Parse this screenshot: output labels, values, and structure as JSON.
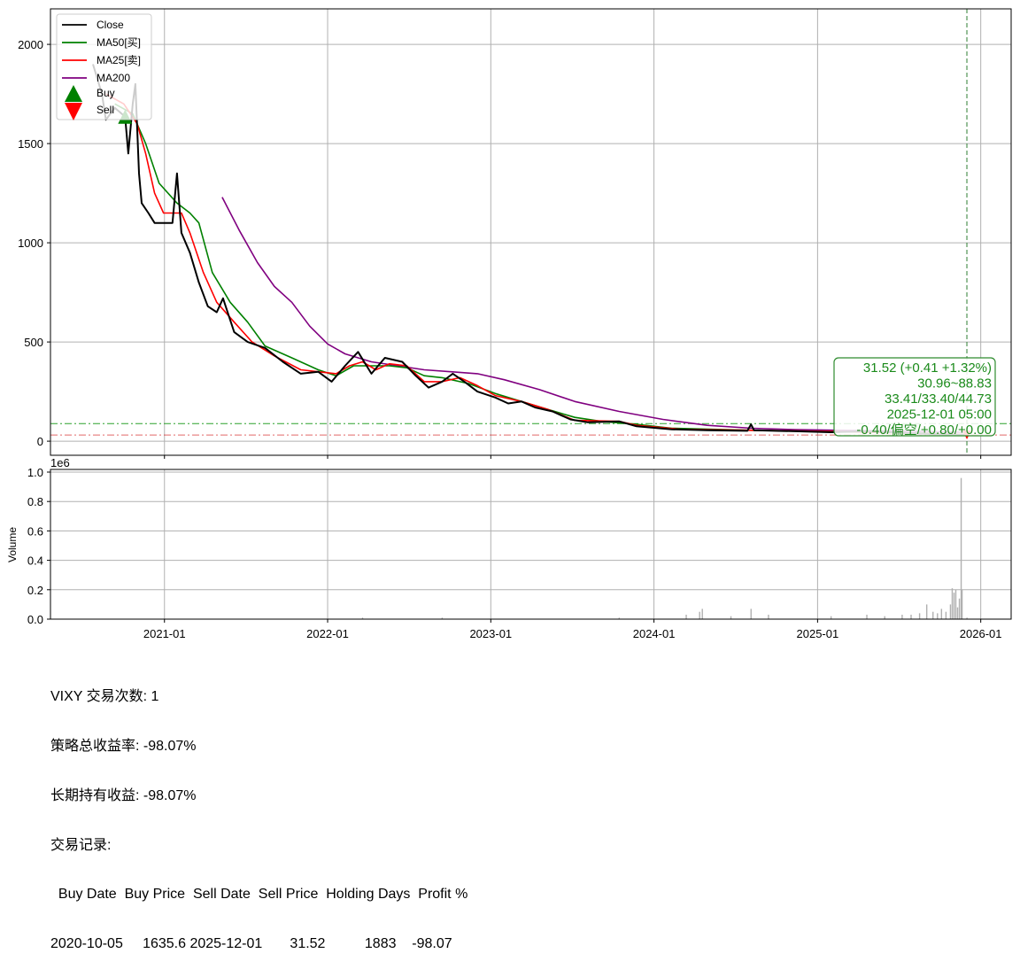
{
  "chart_data": [
    {
      "type": "line",
      "ticker": "VIXY",
      "xlim": [
        "2020-04-21",
        "2026-03-10"
      ],
      "ylim": [
        -71,
        2179
      ],
      "grid": true,
      "legend_placement": "top-left",
      "x_ticks": [
        "2021-01",
        "2022-01",
        "2023-01",
        "2024-01",
        "2025-01",
        "2026-01"
      ],
      "y_ticks": [
        0,
        500,
        1000,
        1500,
        2000
      ],
      "legend": [
        "Close",
        "MA50[买]",
        "MA25[卖]",
        "MA200",
        "Buy",
        "Sell"
      ],
      "colors": {
        "close": "#000000",
        "ma50": "#008000",
        "ma25": "#ff0000",
        "ma200": "#800080",
        "buy": "#008000",
        "sell": "#ff0000",
        "high_line": "#2ca02c",
        "low_line": "#d62728"
      },
      "series": [
        {
          "name": "Close",
          "key": "close",
          "points": [
            [
              "2020-07-25",
              1900
            ],
            [
              "2020-08-14",
              1750
            ],
            [
              "2020-08-23",
              1620
            ],
            [
              "2020-09-12",
              1680
            ],
            [
              "2020-10-05",
              1635.6
            ],
            [
              "2020-10-12",
              1450
            ],
            [
              "2020-10-22",
              1700
            ],
            [
              "2020-10-28",
              1800
            ],
            [
              "2020-11-05",
              1350
            ],
            [
              "2020-11-11",
              1200
            ],
            [
              "2020-11-26",
              1150
            ],
            [
              "2020-12-10",
              1100
            ],
            [
              "2020-12-30",
              1100
            ],
            [
              "2021-01-19",
              1100
            ],
            [
              "2021-01-29",
              1350
            ],
            [
              "2021-02-08",
              1050
            ],
            [
              "2021-02-27",
              950
            ],
            [
              "2021-03-19",
              800
            ],
            [
              "2021-04-08",
              680
            ],
            [
              "2021-04-28",
              650
            ],
            [
              "2021-05-12",
              720
            ],
            [
              "2021-06-06",
              550
            ],
            [
              "2021-07-06",
              500
            ],
            [
              "2021-08-14",
              470
            ],
            [
              "2021-09-23",
              400
            ],
            [
              "2021-11-02",
              340
            ],
            [
              "2021-12-11",
              350
            ],
            [
              "2022-01-10",
              300
            ],
            [
              "2022-02-09",
              380
            ],
            [
              "2022-03-10",
              450
            ],
            [
              "2022-04-09",
              340
            ],
            [
              "2022-05-09",
              420
            ],
            [
              "2022-06-17",
              400
            ],
            [
              "2022-07-17",
              330
            ],
            [
              "2022-08-15",
              270
            ],
            [
              "2022-09-14",
              300
            ],
            [
              "2022-10-08",
              340
            ],
            [
              "2022-11-03",
              300
            ],
            [
              "2022-12-02",
              250
            ],
            [
              "2023-01-11",
              220
            ],
            [
              "2023-02-09",
              190
            ],
            [
              "2023-03-11",
              200
            ],
            [
              "2023-04-10",
              170
            ],
            [
              "2023-05-19",
              150
            ],
            [
              "2023-06-28",
              110
            ],
            [
              "2023-08-06",
              95
            ],
            [
              "2023-10-15",
              100
            ],
            [
              "2023-11-23",
              75
            ],
            [
              "2024-02-10",
              60
            ],
            [
              "2024-04-29",
              55
            ],
            [
              "2024-07-28",
              52
            ],
            [
              "2024-08-05",
              85
            ],
            [
              "2024-08-12",
              55
            ],
            [
              "2024-11-13",
              50
            ],
            [
              "2025-01-31",
              45
            ],
            [
              "2025-04-21",
              50
            ],
            [
              "2025-07-09",
              42
            ],
            [
              "2025-09-26",
              35
            ],
            [
              "2025-12-01",
              31.52
            ]
          ]
        },
        {
          "name": "MA50[买]",
          "key": "ma50",
          "points": [
            [
              "2020-09-12",
              1700
            ],
            [
              "2020-10-22",
              1650
            ],
            [
              "2020-11-20",
              1500
            ],
            [
              "2020-12-20",
              1300
            ],
            [
              "2021-01-29",
              1200
            ],
            [
              "2021-02-27",
              1150
            ],
            [
              "2021-03-19",
              1100
            ],
            [
              "2021-04-18",
              850
            ],
            [
              "2021-05-28",
              700
            ],
            [
              "2021-07-06",
              600
            ],
            [
              "2021-08-14",
              480
            ],
            [
              "2021-10-13",
              420
            ],
            [
              "2021-12-11",
              360
            ],
            [
              "2022-01-20",
              330
            ],
            [
              "2022-02-28",
              380
            ],
            [
              "2022-04-09",
              380
            ],
            [
              "2022-05-19",
              380
            ],
            [
              "2022-06-27",
              370
            ],
            [
              "2022-08-05",
              330
            ],
            [
              "2022-09-14",
              320
            ],
            [
              "2022-11-13",
              290
            ],
            [
              "2023-01-11",
              240
            ],
            [
              "2023-03-11",
              200
            ],
            [
              "2023-05-09",
              160
            ],
            [
              "2023-07-08",
              120
            ],
            [
              "2023-09-05",
              100
            ],
            [
              "2023-11-23",
              85
            ],
            [
              "2024-02-10",
              65
            ],
            [
              "2024-08-07",
              55
            ],
            [
              "2025-02-20",
              48
            ],
            [
              "2025-09-06",
              40
            ],
            [
              "2025-12-01",
              33.41
            ]
          ]
        },
        {
          "name": "MA25[卖]",
          "key": "ma25",
          "points": [
            [
              "2020-08-23",
              1750
            ],
            [
              "2020-10-02",
              1700
            ],
            [
              "2020-11-01",
              1600
            ],
            [
              "2020-11-20",
              1450
            ],
            [
              "2020-12-10",
              1250
            ],
            [
              "2020-12-30",
              1150
            ],
            [
              "2021-02-08",
              1150
            ],
            [
              "2021-02-27",
              1050
            ],
            [
              "2021-03-29",
              850
            ],
            [
              "2021-04-28",
              700
            ],
            [
              "2021-06-06",
              600
            ],
            [
              "2021-07-16",
              500
            ],
            [
              "2021-09-04",
              430
            ],
            [
              "2021-11-02",
              360
            ],
            [
              "2021-12-11",
              350
            ],
            [
              "2022-01-20",
              340
            ],
            [
              "2022-02-19",
              380
            ],
            [
              "2022-03-20",
              400
            ],
            [
              "2022-04-19",
              360
            ],
            [
              "2022-05-19",
              390
            ],
            [
              "2022-06-27",
              380
            ],
            [
              "2022-08-05",
              300
            ],
            [
              "2022-09-14",
              300
            ],
            [
              "2022-10-24",
              320
            ],
            [
              "2022-12-02",
              280
            ],
            [
              "2023-01-11",
              230
            ],
            [
              "2023-03-11",
              200
            ],
            [
              "2023-05-09",
              160
            ],
            [
              "2023-07-08",
              105
            ],
            [
              "2023-10-15",
              100
            ],
            [
              "2023-11-23",
              80
            ],
            [
              "2024-03-01",
              60
            ],
            [
              "2024-08-07",
              55
            ],
            [
              "2025-02-20",
              48
            ],
            [
              "2025-09-06",
              38
            ],
            [
              "2025-12-01",
              33.4
            ]
          ]
        },
        {
          "name": "MA200",
          "key": "ma200",
          "points": [
            [
              "2021-05-10",
              1230
            ],
            [
              "2021-06-18",
              1060
            ],
            [
              "2021-07-28",
              900
            ],
            [
              "2021-09-04",
              780
            ],
            [
              "2021-10-13",
              700
            ],
            [
              "2021-11-22",
              580
            ],
            [
              "2022-01-01",
              490
            ],
            [
              "2022-02-09",
              440
            ],
            [
              "2022-04-09",
              400
            ],
            [
              "2022-06-07",
              380
            ],
            [
              "2022-08-05",
              360
            ],
            [
              "2022-10-04",
              350
            ],
            [
              "2022-12-02",
              340
            ],
            [
              "2023-01-31",
              310
            ],
            [
              "2023-04-20",
              260
            ],
            [
              "2023-07-08",
              200
            ],
            [
              "2023-10-15",
              150
            ],
            [
              "2024-01-21",
              110
            ],
            [
              "2024-04-29",
              80
            ],
            [
              "2024-08-07",
              65
            ],
            [
              "2024-11-13",
              58
            ],
            [
              "2025-02-20",
              55
            ],
            [
              "2025-05-31",
              52
            ],
            [
              "2025-12-01",
              44.73
            ]
          ]
        }
      ],
      "buy_markers": [
        [
          "2020-10-05",
          1635.6
        ]
      ],
      "sell_markers": [
        [
          "2025-12-01",
          31.52
        ]
      ],
      "hlines": {
        "high": 88.83,
        "low": 30.96
      },
      "vline_date": "2025-12-01",
      "annotation": [
        "31.52 (+0.41 +1.32%)",
        "30.96~88.83",
        "33.41/33.40/44.73",
        "2025-12-01 05:00",
        "-0.40/偏空/+0.80/+0.00"
      ]
    },
    {
      "type": "bar",
      "ylabel": "Volume",
      "scale_label": "1e6",
      "ylim": [
        0,
        1.018
      ],
      "grid": true,
      "y_ticks": [
        "0.0",
        "0.2",
        "0.4",
        "0.6",
        "0.8",
        "1.0"
      ],
      "color": "#b0b0b0",
      "bars_millions": [
        [
          "2022-03-20",
          0.01
        ],
        [
          "2022-09-14",
          0.01
        ],
        [
          "2023-10-15",
          0.01
        ],
        [
          "2024-03-13",
          0.03
        ],
        [
          "2024-04-12",
          0.05
        ],
        [
          "2024-04-18",
          0.07
        ],
        [
          "2024-06-21",
          0.02
        ],
        [
          "2024-08-05",
          0.07
        ],
        [
          "2024-09-13",
          0.03
        ],
        [
          "2025-01-31",
          0.02
        ],
        [
          "2025-04-21",
          0.03
        ],
        [
          "2025-05-31",
          0.02
        ],
        [
          "2025-07-09",
          0.03
        ],
        [
          "2025-07-29",
          0.03
        ],
        [
          "2025-08-17",
          0.04
        ],
        [
          "2025-09-02",
          0.1
        ],
        [
          "2025-09-16",
          0.05
        ],
        [
          "2025-09-26",
          0.04
        ],
        [
          "2025-10-05",
          0.07
        ],
        [
          "2025-10-15",
          0.05
        ],
        [
          "2025-10-25",
          0.1
        ],
        [
          "2025-10-29",
          0.21
        ],
        [
          "2025-11-02",
          0.18
        ],
        [
          "2025-11-06",
          0.2
        ],
        [
          "2025-11-10",
          0.08
        ],
        [
          "2025-11-14",
          0.14
        ],
        [
          "2025-11-18",
          0.96
        ],
        [
          "2025-11-20",
          0.2
        ],
        [
          "2025-12-01",
          0.01
        ]
      ]
    }
  ],
  "summary": {
    "lines": [
      "VIXY 交易次数: 1",
      "策略总收益率: -98.07%",
      "长期持有收益: -98.07%",
      "交易记录:"
    ],
    "table_header": "  Buy Date  Buy Price  Sell Date  Sell Price  Holding Days  Profit %",
    "table_rows": [
      "2020-10-05     1635.6 2025-12-01       31.52          1883    -98.07"
    ]
  }
}
